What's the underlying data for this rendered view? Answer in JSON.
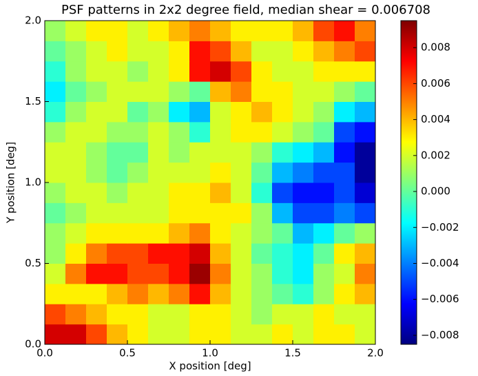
{
  "chart_data": {
    "type": "heatmap",
    "title": "PSF patterns in 2x2 degree field, median shear = 0.006708",
    "x_label": "X position [deg]",
    "y_label": "Y position [deg]",
    "xlim": [
      0,
      2
    ],
    "ylim": [
      0,
      2
    ],
    "xticks": [
      {
        "value": 0,
        "label": "0.0"
      },
      0.5,
      {
        "value": 1,
        "label": "1.0"
      },
      1.5,
      {
        "value": 2,
        "label": "2.0"
      }
    ],
    "yticks": [
      {
        "value": 0,
        "label": "0.0"
      },
      0.5,
      {
        "value": 1,
        "label": "1.0"
      },
      1.5,
      {
        "value": 2,
        "label": "2.0"
      }
    ],
    "zlim": [
      -0.0085,
      0.0095
    ],
    "zticks": [
      {
        "value": -0.008,
        "label": "−0.008"
      },
      {
        "value": -0.006,
        "label": "−0.006"
      },
      {
        "value": -0.004,
        "label": "−0.004"
      },
      {
        "value": -0.002,
        "label": "−0.002"
      },
      {
        "value": 0,
        "label": "0.000"
      },
      0.002,
      0.004,
      0.006,
      0.008
    ],
    "colormap": [
      "#00007f",
      "#0000ff",
      "#007fff",
      "#00ffff",
      "#7fff7f",
      "#ffff00",
      "#ff7f00",
      "#ff0000",
      "#7f0000"
    ],
    "z": [
      [
        0.008,
        0.008,
        0.006,
        0.004,
        0.003,
        0.002,
        0.002,
        0.003,
        0.003,
        0.002,
        0.002,
        0.003,
        0.002,
        0.003,
        0.003,
        0.002
      ],
      [
        0.006,
        0.005,
        0.004,
        0.003,
        0.003,
        0.002,
        0.002,
        0.003,
        0.003,
        0.002,
        0.001,
        0.002,
        0.002,
        0.003,
        0.002,
        0.002
      ],
      [
        0.003,
        0.003,
        0.003,
        0.004,
        0.005,
        0.004,
        0.005,
        0.007,
        0.004,
        0.002,
        0.001,
        0,
        -0.001,
        0.001,
        0.003,
        0.004
      ],
      [
        0.002,
        0.005,
        0.007,
        0.007,
        0.006,
        0.006,
        0.007,
        0.009,
        0.005,
        0.002,
        0.001,
        -0.001,
        -0.002,
        0.001,
        0.002,
        0.005
      ],
      [
        0.001,
        0.003,
        0.005,
        0.006,
        0.006,
        0.007,
        0.007,
        0.008,
        0.004,
        0.002,
        0,
        -0.001,
        -0.002,
        0,
        0.003,
        0.004
      ],
      [
        0.001,
        0.002,
        0.003,
        0.003,
        0.003,
        0.003,
        0.004,
        0.005,
        0.003,
        0.002,
        0.001,
        0,
        -0.003,
        -0.002,
        0,
        0.001
      ],
      [
        0,
        0.001,
        0.002,
        0.002,
        0.002,
        0.002,
        0.003,
        0.003,
        0.003,
        0.003,
        0.001,
        -0.003,
        -0.005,
        -0.005,
        -0.004,
        -0.005
      ],
      [
        0.001,
        0.002,
        0.002,
        0.001,
        0.002,
        0.002,
        0.003,
        0.003,
        0.004,
        0.002,
        -0.001,
        -0.005,
        -0.006,
        -0.006,
        -0.005,
        -0.007
      ],
      [
        0.002,
        0.002,
        0.001,
        0,
        0.001,
        0.002,
        0.002,
        0.002,
        0.003,
        0.002,
        0,
        -0.003,
        -0.004,
        -0.005,
        -0.005,
        -0.008
      ],
      [
        0.002,
        0.002,
        0.001,
        0,
        0,
        0.002,
        0.001,
        0.002,
        0.002,
        0.002,
        0.001,
        -0.001,
        -0.002,
        -0.003,
        -0.006,
        -0.008
      ],
      [
        0.001,
        0.002,
        0.002,
        0.001,
        0.001,
        0.002,
        0.001,
        -0.001,
        0.002,
        0.003,
        0.003,
        0.002,
        0.001,
        0,
        -0.005,
        -0.006
      ],
      [
        -0.001,
        0.001,
        0.002,
        0.002,
        0,
        0.001,
        -0.002,
        -0.003,
        0.002,
        0.003,
        0.004,
        0.003,
        0.002,
        0.001,
        -0.002,
        -0.003
      ],
      [
        -0.002,
        0,
        0.001,
        0.002,
        0.002,
        0.002,
        0.001,
        0,
        0.004,
        0.005,
        0.003,
        0.003,
        0.002,
        0.002,
        0.001,
        0
      ],
      [
        -0.001,
        0.001,
        0.002,
        0.002,
        0.001,
        0.002,
        0.003,
        0.007,
        0.008,
        0.006,
        0.003,
        0.002,
        0.002,
        0.003,
        0.003,
        0.003
      ],
      [
        0,
        0.001,
        0.002,
        0.003,
        0.002,
        0.002,
        0.003,
        0.007,
        0.006,
        0.004,
        0.002,
        0.002,
        0.003,
        0.004,
        0.005,
        0.006
      ],
      [
        0.001,
        0.002,
        0.003,
        0.003,
        0.002,
        0.003,
        0.004,
        0.005,
        0.004,
        0.003,
        0.003,
        0.003,
        0.004,
        0.006,
        0.007,
        0.005
      ]
    ]
  }
}
